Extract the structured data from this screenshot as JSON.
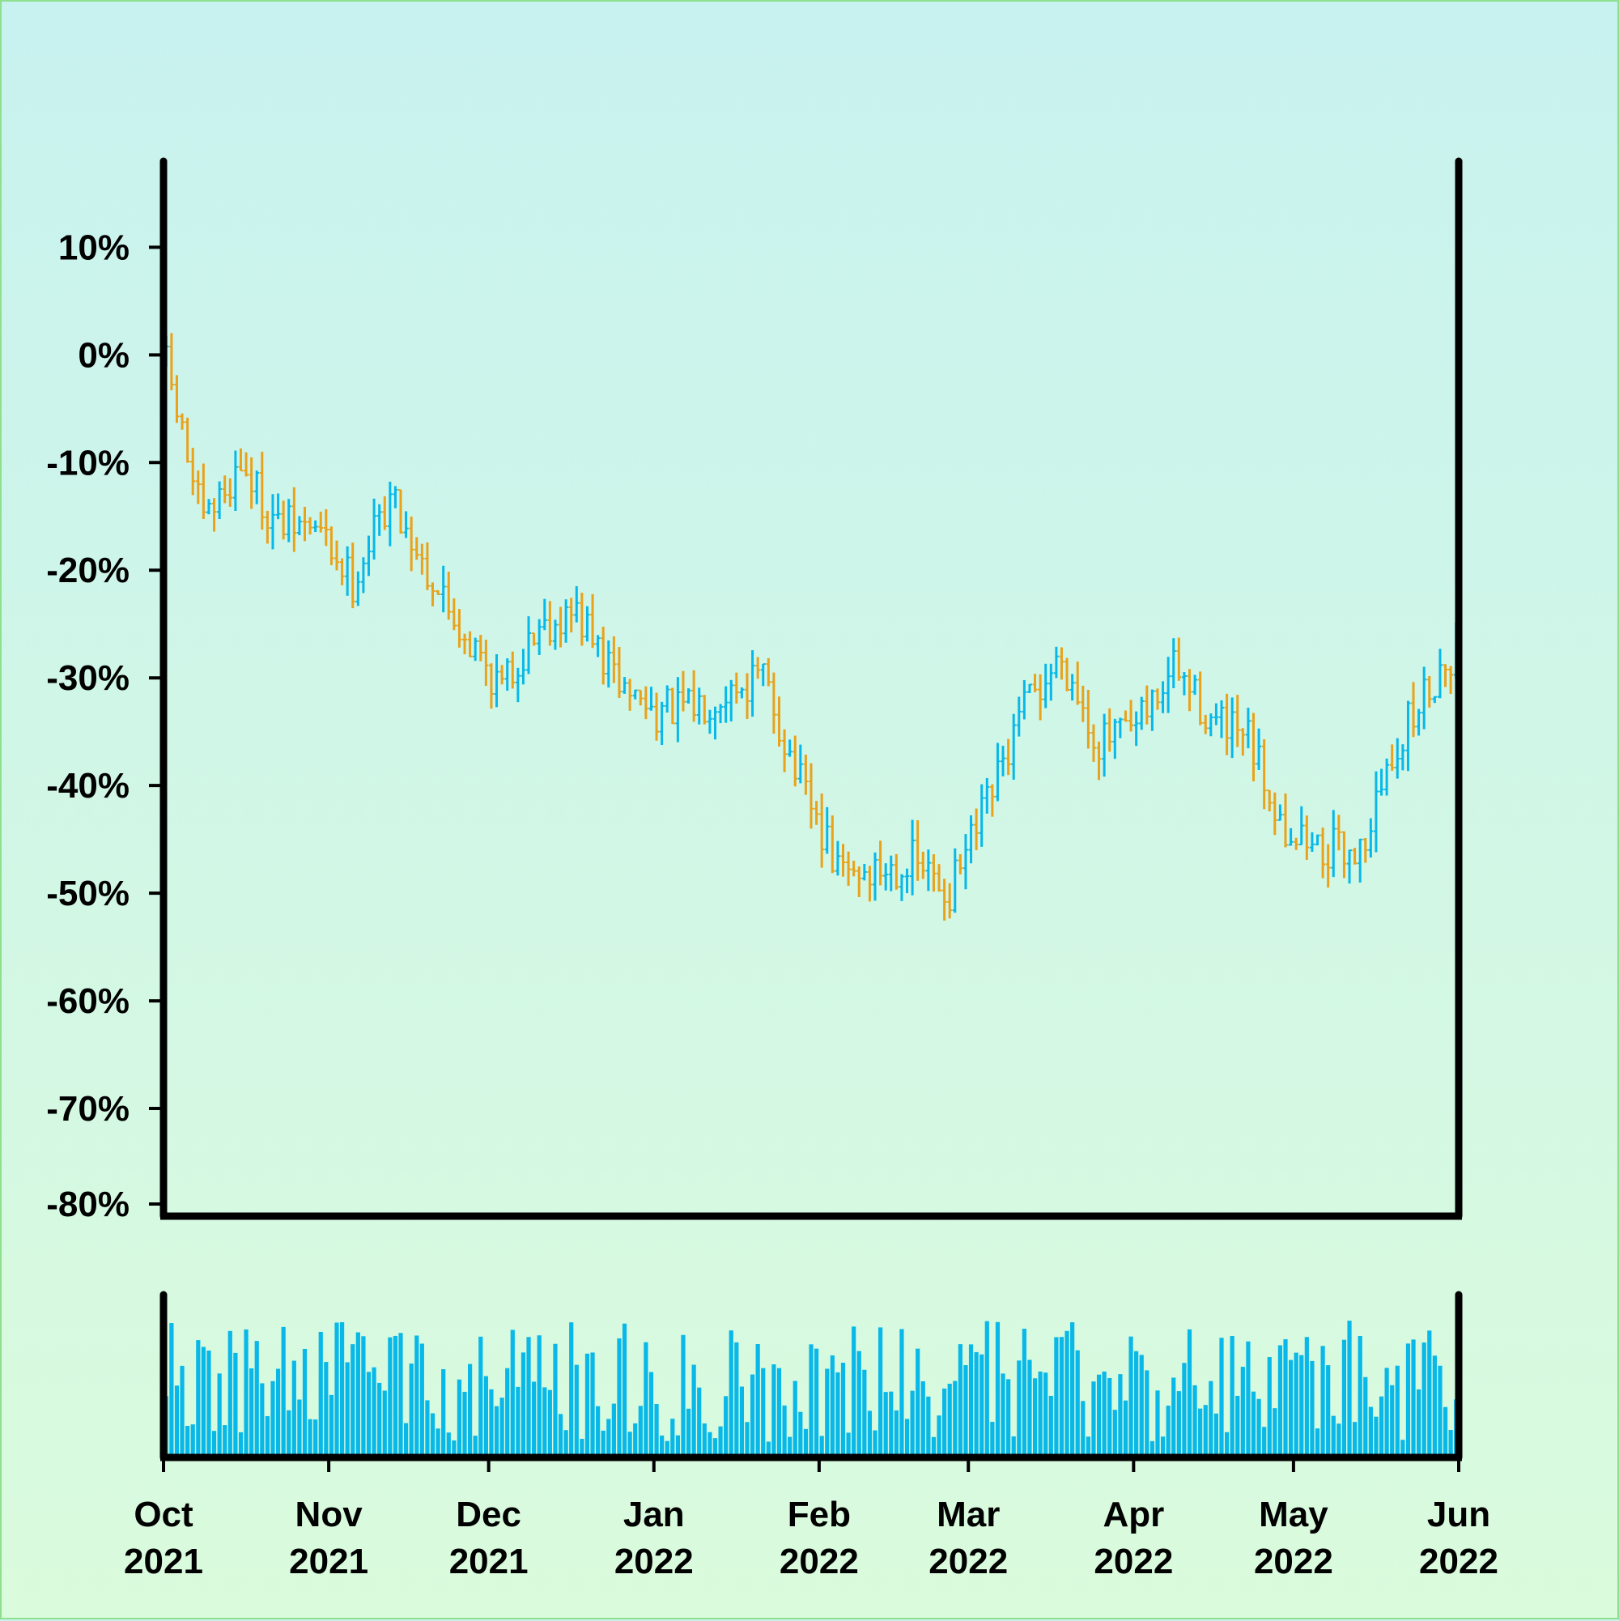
{
  "colors": {
    "up": "#08b8e8",
    "down": "#e8a21c",
    "volume": "#08b8e8",
    "axis": "#000000",
    "background_top": "#c8f2f0",
    "background_bottom": "#dafbdc"
  },
  "chart_data": [
    {
      "type": "ohlc",
      "title": "",
      "xlabel": "",
      "ylabel": "",
      "x_range": [
        "2021-10-01",
        "2022-06-01"
      ],
      "ylim": [
        -80,
        18
      ],
      "y_unit": "%",
      "y_ticks": [
        10,
        0,
        -10,
        -20,
        -30,
        -40,
        -50,
        -60,
        -70,
        -80
      ],
      "y_tick_labels": [
        "10%",
        "0%",
        "-10%",
        "-20%",
        "-30%",
        "-40%",
        "-50%",
        "-60%",
        "-70%",
        "-80%"
      ],
      "grid": false,
      "series": [
        {
          "description": "close (% change)",
          "x": [
            "2021-10-01",
            "2021-10-08",
            "2021-10-15",
            "2021-10-22",
            "2021-10-29",
            "2021-11-05",
            "2021-11-12",
            "2021-11-19",
            "2021-11-26",
            "2021-12-03",
            "2021-12-10",
            "2021-12-17",
            "2021-12-24",
            "2021-12-31",
            "2022-01-07",
            "2022-01-14",
            "2022-01-21",
            "2022-01-28",
            "2022-02-04",
            "2022-02-11",
            "2022-02-18",
            "2022-02-25",
            "2022-03-04",
            "2022-03-11",
            "2022-03-18",
            "2022-03-25",
            "2022-04-01",
            "2022-04-08",
            "2022-04-15",
            "2022-04-22",
            "2022-04-29",
            "2022-05-06",
            "2022-05-13",
            "2022-05-20",
            "2022-05-27",
            "2022-05-31"
          ],
          "values": [
            -1,
            -16,
            -10,
            -16,
            -16,
            -21,
            -13,
            -20,
            -26,
            -31,
            -25,
            -24,
            -30,
            -33,
            -33,
            -31,
            -30,
            -40,
            -48,
            -48,
            -47,
            -50,
            -42,
            -33,
            -28,
            -36,
            -35,
            -29,
            -34,
            -36,
            -44,
            -46,
            -46,
            -36,
            -30,
            -27
          ]
        }
      ]
    },
    {
      "type": "bar",
      "title": "",
      "description": "volume",
      "x_ticks": [
        "2021-10-01",
        "2021-11-01",
        "2021-12-01",
        "2022-01-01",
        "2022-02-01",
        "2022-03-01",
        "2022-04-01",
        "2022-05-01",
        "2022-06-01"
      ],
      "x_tick_labels": [
        [
          "Oct",
          "2021"
        ],
        [
          "Nov",
          "2021"
        ],
        [
          "Dec",
          "2021"
        ],
        [
          "Jan",
          "2022"
        ],
        [
          "Feb",
          "2022"
        ],
        [
          "Mar",
          "2022"
        ],
        [
          "Apr",
          "2022"
        ],
        [
          "May",
          "2022"
        ],
        [
          "Jun",
          "2022"
        ]
      ],
      "grid": false
    }
  ]
}
